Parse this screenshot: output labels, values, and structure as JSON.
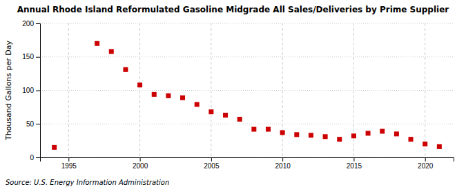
{
  "chart_data": {
    "type": "scatter",
    "title": "Annual Rhode Island Reformulated Gasoline Midgrade All Sales/Deliveries by Prime Supplier",
    "ylabel": "Thousand Gallons per Day",
    "source": "Source: U.S. Energy Information Administration",
    "x": [
      1994,
      1997,
      1998,
      1999,
      2000,
      2001,
      2002,
      2003,
      2004,
      2005,
      2006,
      2007,
      2008,
      2009,
      2010,
      2011,
      2012,
      2013,
      2014,
      2015,
      2016,
      2017,
      2018,
      2019,
      2020,
      2021
    ],
    "values": [
      15,
      170,
      158,
      131,
      108,
      94,
      92,
      89,
      79,
      68,
      63,
      57,
      42,
      42,
      37,
      34,
      33,
      31,
      27,
      32,
      36,
      39,
      35,
      27,
      20,
      16
    ],
    "color": "#cc0000",
    "marker": "square",
    "xlim": [
      1993,
      2022
    ],
    "ylim": [
      0,
      200
    ],
    "xticks": [
      1995,
      2000,
      2005,
      2010,
      2015,
      2020
    ],
    "yticks": [
      0,
      50,
      100,
      150,
      200
    ],
    "grid": true
  }
}
